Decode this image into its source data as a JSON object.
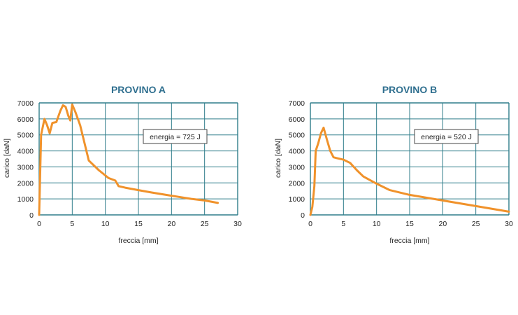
{
  "colors": {
    "grid": "#2f7d8a",
    "curve": "#f0922b",
    "title": "#2f6f8f"
  },
  "chart_data": [
    {
      "type": "line",
      "title": "PROVINO A",
      "xlabel": "freccia [mm]",
      "ylabel": "carico [daN]",
      "xlim": [
        0,
        30
      ],
      "ylim": [
        0,
        7000
      ],
      "xticks": [
        "0",
        "5",
        "10",
        "15",
        "20",
        "25",
        "30"
      ],
      "yticks": [
        "0",
        "1000",
        "2000",
        "3000",
        "4000",
        "5000",
        "6000",
        "7000"
      ],
      "grid": true,
      "annotation": "energia = 725 J",
      "series": [
        {
          "x": [
            0,
            0.3,
            0.8,
            1.2,
            1.6,
            2.0,
            2.6,
            3.2,
            3.6,
            4.0,
            4.4,
            4.7,
            5.0,
            5.5,
            6.2,
            7.5,
            9.0,
            10.5,
            11.5,
            12.0,
            13.0,
            15.0,
            17.0,
            20.0,
            23.0,
            25.0,
            27.0
          ],
          "y": [
            0,
            5000,
            6000,
            5600,
            5100,
            5750,
            5800,
            6500,
            6850,
            6750,
            6200,
            5900,
            6900,
            6400,
            5600,
            3400,
            2800,
            2300,
            2150,
            1800,
            1700,
            1550,
            1400,
            1200,
            1000,
            900,
            750
          ]
        }
      ]
    },
    {
      "type": "line",
      "title": "PROVINO B",
      "xlabel": "freccia [mm]",
      "ylabel": "carico [daN]",
      "xlim": [
        0,
        30
      ],
      "ylim": [
        0,
        7000
      ],
      "xticks": [
        "0",
        "5",
        "10",
        "15",
        "20",
        "25",
        "30"
      ],
      "yticks": [
        "0",
        "1000",
        "2000",
        "3000",
        "4000",
        "5000",
        "6000",
        "7000"
      ],
      "grid": true,
      "annotation": "energia = 520 J",
      "series": [
        {
          "x": [
            0,
            0.3,
            0.6,
            0.8,
            1.2,
            1.6,
            2.0,
            2.5,
            3.0,
            3.5,
            4.0,
            5.0,
            6.0,
            7.0,
            8.0,
            10.0,
            12.0,
            15.0,
            20.0,
            25.0,
            30.0
          ],
          "y": [
            0,
            500,
            1800,
            4000,
            4500,
            5100,
            5450,
            4700,
            4000,
            3600,
            3550,
            3450,
            3250,
            2800,
            2400,
            1950,
            1550,
            1250,
            900,
            550,
            200
          ]
        }
      ]
    }
  ]
}
